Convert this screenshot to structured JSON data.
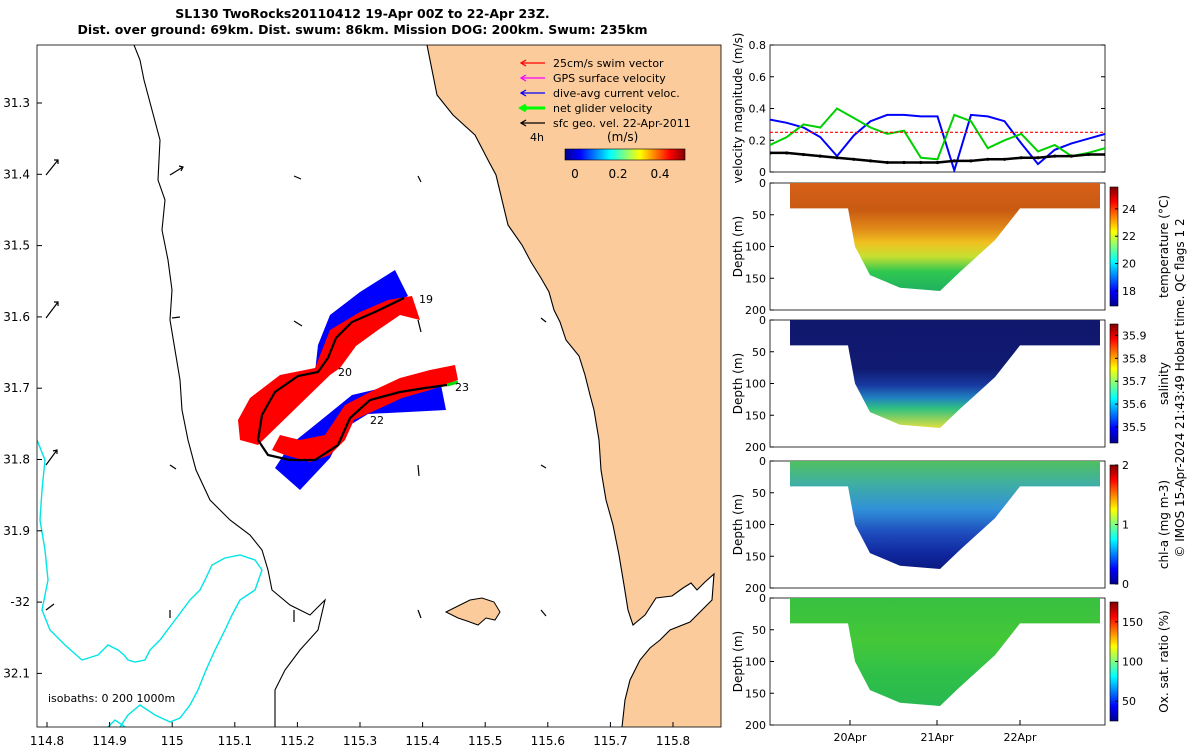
{
  "title": {
    "line1": "SL130 TwoRocks20110412 19-Apr 00Z to 22-Apr 23Z.",
    "line2": "Dist. over ground: 69km. Dist. swum: 86km. Mission DOG: 200km. Swum: 235km"
  },
  "map": {
    "lon_ticks": [
      "114.8",
      "114.9",
      "115",
      "115.1",
      "115.2",
      "115.3",
      "115.4",
      "115.5",
      "115.6",
      "115.7",
      "115.8"
    ],
    "lat_ticks": [
      "31.3",
      "31.4",
      "31.5",
      "31.6",
      "31.7",
      "31.8",
      "31.9",
      "-32",
      "32.1"
    ],
    "legend": [
      {
        "label": "25cm/s swim vector",
        "color": "#ff0000"
      },
      {
        "label": "GPS surface velocity",
        "color": "#ff00ff"
      },
      {
        "label": "dive-avg current veloc.",
        "color": "#0000ff"
      },
      {
        "label": "net glider velocity",
        "color": "#00ff00"
      },
      {
        "label": "sfc geo. vel. 22-Apr-2011",
        "color": "#000000"
      }
    ],
    "colorbar_unit": "(m/s)",
    "colorbar_ticks": [
      "0",
      "0.2",
      "0.4"
    ],
    "time_label": "4h",
    "day_labels": [
      "19",
      "20",
      "22",
      "23"
    ],
    "isobaths": "isobaths: 0   200   1000m",
    "colors": {
      "land": "#fbcb9b",
      "isobath_200": "#00e5e5",
      "track_swim": "#ff0000",
      "track_current": "#0000ff",
      "track": "#000000"
    }
  },
  "chart_data": [
    {
      "type": "line",
      "title": "",
      "ylabel": "velocity magnitude (m/s)",
      "ylim": [
        0,
        0.8
      ],
      "yticks": [
        "0",
        "0.2",
        "0.4",
        "0.6",
        "0.8"
      ],
      "x": [
        19.0,
        19.2,
        19.4,
        19.6,
        19.8,
        20.0,
        20.2,
        20.4,
        20.6,
        20.8,
        21.0,
        21.2,
        21.4,
        21.6,
        21.8,
        22.0,
        22.2,
        22.4,
        22.6,
        22.8,
        23.0
      ],
      "series": [
        {
          "color": "#0000ff",
          "values": [
            0.33,
            0.31,
            0.28,
            0.22,
            0.1,
            0.23,
            0.32,
            0.36,
            0.36,
            0.35,
            0.35,
            0.01,
            0.36,
            0.35,
            0.32,
            0.18,
            0.05,
            0.14,
            0.18,
            0.21,
            0.24
          ]
        },
        {
          "color": "#00d000",
          "values": [
            0.17,
            0.22,
            0.3,
            0.28,
            0.4,
            0.34,
            0.28,
            0.24,
            0.26,
            0.09,
            0.08,
            0.36,
            0.32,
            0.15,
            0.2,
            0.24,
            0.13,
            0.17,
            0.1,
            0.12,
            0.15
          ]
        },
        {
          "color": "#000000",
          "values": [
            0.12,
            0.12,
            0.11,
            0.1,
            0.09,
            0.08,
            0.07,
            0.06,
            0.06,
            0.06,
            0.06,
            0.07,
            0.07,
            0.08,
            0.08,
            0.09,
            0.09,
            0.1,
            0.1,
            0.11,
            0.11
          ]
        },
        {
          "color": "#ff0000",
          "values": [
            0.25,
            0.25,
            0.25,
            0.25,
            0.25,
            0.25,
            0.25,
            0.25,
            0.25,
            0.25,
            0.25,
            0.25,
            0.25,
            0.25,
            0.25,
            0.25,
            0.25,
            0.25,
            0.25,
            0.25,
            0.25
          ]
        }
      ]
    },
    {
      "type": "heatmap",
      "ylabel": "Depth (m)",
      "yticks": [
        "0",
        "50",
        "100",
        "150",
        "200"
      ],
      "colorbar_label": "temperature (°C)",
      "colorbar_ticks": [
        "18",
        "20",
        "22",
        "24"
      ],
      "range": [
        16.9,
        25.6
      ]
    },
    {
      "type": "heatmap",
      "ylabel": "Depth (m)",
      "yticks": [
        "0",
        "50",
        "100",
        "150",
        "200"
      ],
      "colorbar_label": "salinity",
      "colorbar_ticks": [
        "35.5",
        "35.6",
        "35.7",
        "35.8",
        "35.9"
      ],
      "range": [
        35.43,
        35.95
      ]
    },
    {
      "type": "heatmap",
      "ylabel": "Depth (m)",
      "yticks": [
        "0",
        "50",
        "100",
        "150",
        "200"
      ],
      "colorbar_label": "chl-a (mg m-3)",
      "colorbar_ticks": [
        "0",
        "1",
        "2"
      ],
      "range": [
        0,
        2
      ]
    },
    {
      "type": "heatmap",
      "ylabel": "Depth (m)",
      "yticks": [
        "0",
        "50",
        "100",
        "150",
        "200"
      ],
      "colorbar_label": "Ox. sat. ratio (%)",
      "colorbar_ticks": [
        "50",
        "100",
        "150"
      ],
      "range": [
        25,
        175
      ]
    }
  ],
  "time_axis": [
    "20Apr",
    "21Apr",
    "22Apr"
  ],
  "side_caption": "© IMOS 15-Apr-2024 21:43:49 Hobart time. QC flags 1  2"
}
